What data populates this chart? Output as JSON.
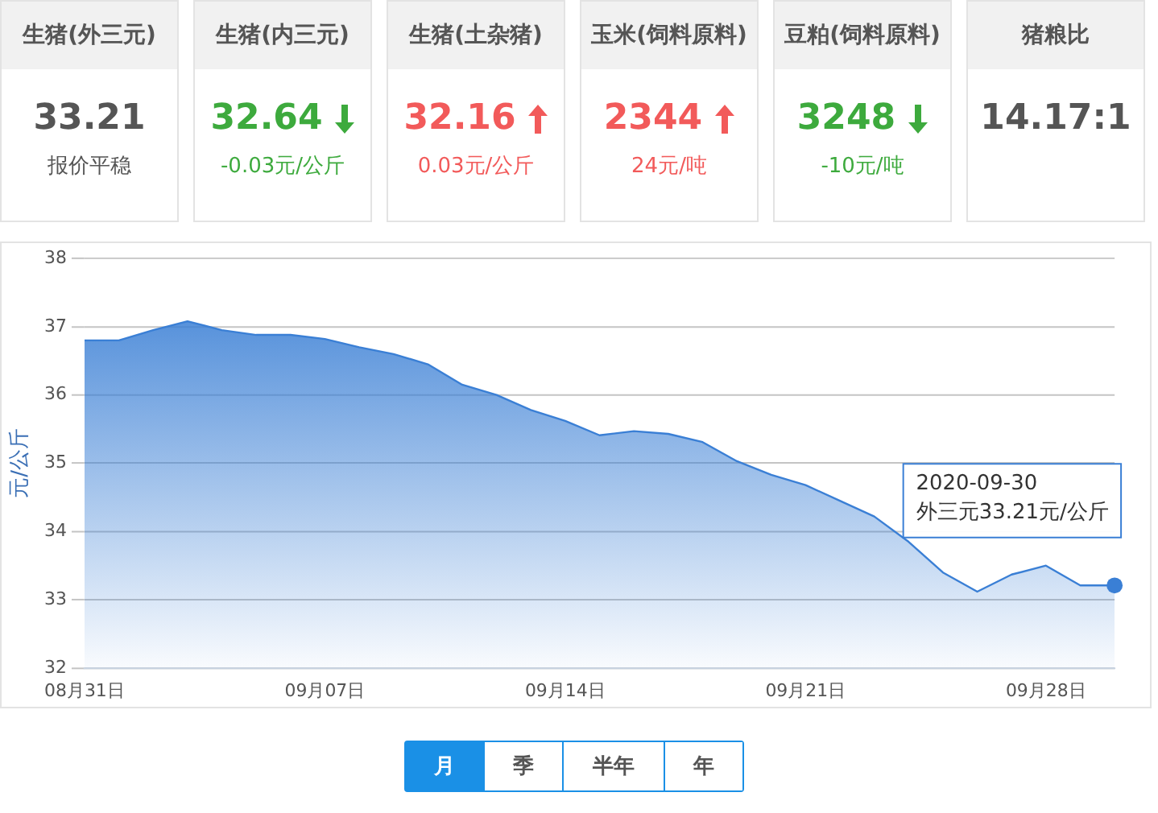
{
  "chart_data": [
    {
      "type": "other",
      "categories": [
        "生猪(外三元)",
        "生猪(内三元)",
        "生猪(土杂猪)",
        "玉米(饲料原料)",
        "豆粕(饲料原料)",
        "猪粮比"
      ],
      "value_labels": [
        "33.21",
        "32.64",
        "32.16",
        "2344",
        "3248",
        "14.17:1"
      ],
      "annotations": [
        "报价平稳",
        "-0.03元/公斤",
        "0.03元/公斤",
        "24元/吨",
        "-10元/吨"
      ]
    },
    {
      "type": "area",
      "x": [
        "2020-08-31",
        "2020-09-01",
        "2020-09-02",
        "2020-09-03",
        "2020-09-04",
        "2020-09-05",
        "2020-09-06",
        "2020-09-07",
        "2020-09-08",
        "2020-09-09",
        "2020-09-10",
        "2020-09-11",
        "2020-09-12",
        "2020-09-13",
        "2020-09-14",
        "2020-09-15",
        "2020-09-16",
        "2020-09-17",
        "2020-09-18",
        "2020-09-19",
        "2020-09-20",
        "2020-09-21",
        "2020-09-22",
        "2020-09-23",
        "2020-09-24",
        "2020-09-25",
        "2020-09-26",
        "2020-09-27",
        "2020-09-28",
        "2020-09-29",
        "2020-09-30"
      ],
      "series": [
        {
          "color": "#3a7fd5",
          "values": [
            36.8,
            36.8,
            36.95,
            37.08,
            36.95,
            36.88,
            36.88,
            36.82,
            36.7,
            36.6,
            36.45,
            36.15,
            36.0,
            35.78,
            35.62,
            35.41,
            35.47,
            35.43,
            35.31,
            35.03,
            34.83,
            34.68,
            34.45,
            34.22,
            33.85,
            33.4,
            33.12,
            33.37,
            33.5,
            33.21,
            33.21
          ]
        }
      ],
      "ylabel": "元/公斤",
      "ylim": [
        32,
        38
      ],
      "yticks": [
        32,
        33,
        34,
        35,
        36,
        37,
        38
      ],
      "xlim": [
        "2020-08-31",
        "2020-09-30"
      ],
      "xticks": [
        {
          "value": "2020-08-31",
          "label": "08月31日"
        },
        {
          "value": "2020-09-07",
          "label": "09月07日"
        },
        {
          "value": "2020-09-14",
          "label": "09月14日"
        },
        {
          "value": "2020-09-21",
          "label": "09月21日"
        },
        {
          "value": "2020-09-28",
          "label": "09月28日"
        }
      ],
      "grid": "y",
      "legend": false,
      "marker": "none",
      "annotations": [
        {
          "text": "2020-09-30\n外三元33.21元/公斤",
          "x": "2020-09-30",
          "y": 33.21
        },
        "月",
        "季",
        "半年",
        "年"
      ]
    }
  ]
}
